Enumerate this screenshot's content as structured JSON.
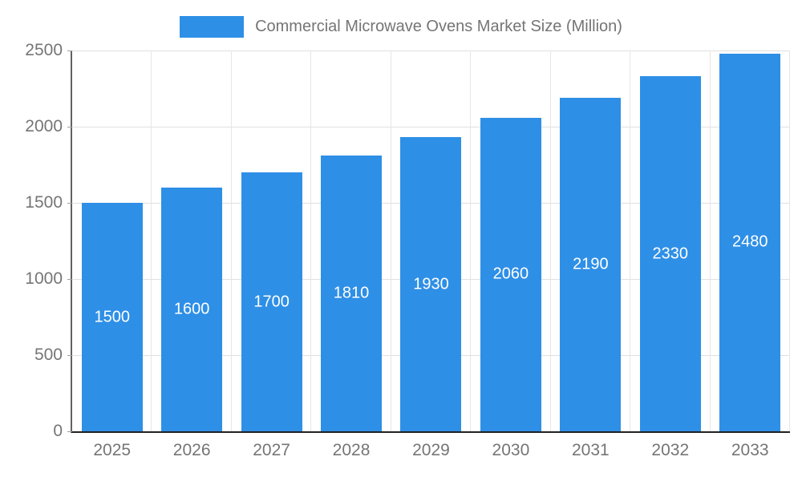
{
  "legend": {
    "label": "Commercial Microwave Ovens Market Size (Million)",
    "swatch_color": "#2e8fe6"
  },
  "chart_data": {
    "type": "bar",
    "title": "Commercial Microwave Ovens Market Size (Million)",
    "categories": [
      "2025",
      "2026",
      "2027",
      "2028",
      "2029",
      "2030",
      "2031",
      "2032",
      "2033"
    ],
    "values": [
      1500,
      1600,
      1700,
      1810,
      1930,
      2060,
      2190,
      2330,
      2480
    ],
    "xlabel": "",
    "ylabel": "",
    "ylim": [
      0,
      2500
    ],
    "yticks": [
      0,
      500,
      1000,
      1500,
      2000,
      2500
    ],
    "grid": true,
    "legend_position": "top",
    "bar_color": "#2e8fe6",
    "value_label_color": "#ffffff",
    "axis_text_color": "#757575"
  }
}
